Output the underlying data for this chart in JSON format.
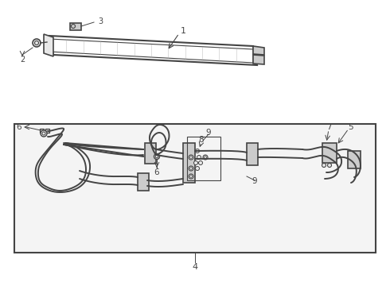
{
  "background_color": "#ffffff",
  "line_color": "#444444",
  "gray_fill": "#e8e8e8",
  "dark_fill": "#cccccc",
  "box_bg": "#efefef",
  "figsize": [
    4.9,
    3.6
  ],
  "dpi": 100
}
